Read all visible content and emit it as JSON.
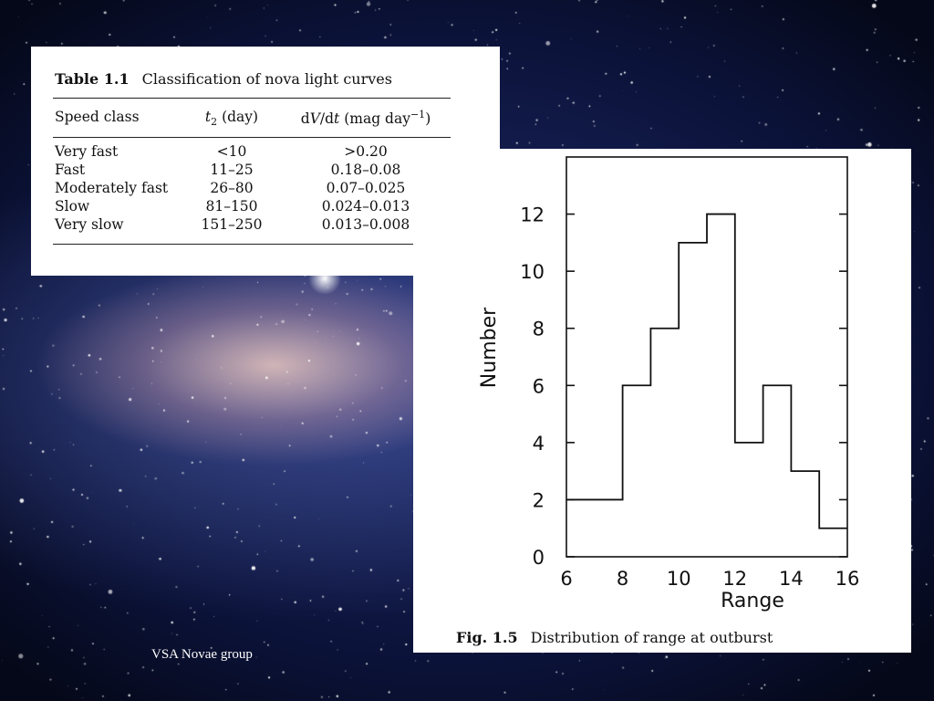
{
  "table": {
    "label": "Table 1.1",
    "title": "Classification of nova light curves",
    "headers": {
      "speed_class": "Speed class",
      "t2_symbol": "t",
      "t2_sub": "2",
      "t2_unit": " (day)",
      "dvdt_a": "d",
      "dvdt_v": "V",
      "dvdt_b": "/d",
      "dvdt_t": "t",
      "dvdt_unit": " (mag day",
      "dvdt_exp": "−1",
      "dvdt_close": ")"
    },
    "rows": [
      {
        "speed_class": "Very fast",
        "t2": "<10",
        "dvdt": ">0.20"
      },
      {
        "speed_class": "Fast",
        "t2": "11–25",
        "dvdt": "0.18–0.08"
      },
      {
        "speed_class": "Moderately fast",
        "t2": "26–80",
        "dvdt": "0.07–0.025"
      },
      {
        "speed_class": "Slow",
        "t2": "81–150",
        "dvdt": "0.024–0.013"
      },
      {
        "speed_class": "Very slow",
        "t2": "151–250",
        "dvdt": "0.013–0.008"
      }
    ]
  },
  "figure": {
    "label": "Fig. 1.5",
    "caption": "Distribution of range at outburst"
  },
  "footer": "VSA Novae group",
  "chart_data": {
    "type": "bar",
    "style": "histogram-step",
    "bin_edges": [
      6,
      7,
      8,
      9,
      10,
      11,
      12,
      13,
      14,
      15,
      16
    ],
    "values": [
      2,
      2,
      6,
      8,
      11,
      12,
      4,
      6,
      3,
      1
    ],
    "title": "",
    "xlabel": "Range",
    "ylabel": "Number",
    "xlim": [
      6,
      16
    ],
    "ylim": [
      0,
      14
    ],
    "xticks": [
      6,
      8,
      10,
      12,
      14,
      16
    ],
    "yticks": [
      0,
      2,
      4,
      6,
      8,
      10,
      12
    ],
    "grid": false
  },
  "colors": {
    "panel": "#ffffff",
    "ink": "#111111",
    "sky_dark": "#0b1238"
  }
}
